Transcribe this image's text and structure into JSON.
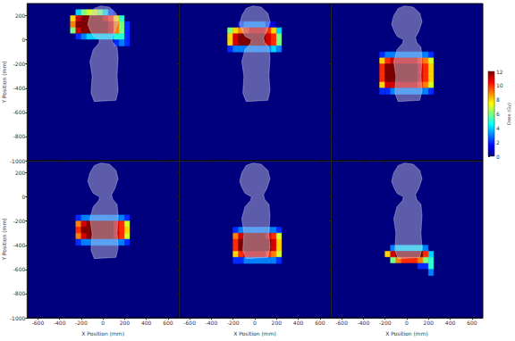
{
  "chart_data": [
    {
      "type": "heatmap",
      "tick_labels": "y",
      "ylabel": "Y Position (mm)",
      "xlim": [
        -700,
        700
      ],
      "ylim": [
        -1000,
        300
      ],
      "xticks": [
        -600,
        -400,
        -200,
        0,
        200,
        400,
        600
      ],
      "yticks": [
        200,
        0,
        -200,
        -400,
        -600,
        -800,
        -1000
      ],
      "color_range": [
        0,
        12
      ],
      "cell_size": 50,
      "cell_x": [
        -325,
        -275,
        -225,
        -175,
        -125,
        -75,
        -25,
        25,
        75,
        125,
        175,
        225,
        275
      ],
      "cell_y": [
        225,
        175,
        125,
        75,
        25,
        -25
      ],
      "cells": [
        [
          0,
          0,
          4,
          6,
          7,
          7,
          6,
          4,
          2,
          0,
          0,
          0,
          0
        ],
        [
          0,
          8,
          11,
          12,
          12,
          12,
          12,
          11,
          10,
          8,
          5,
          0,
          0
        ],
        [
          0,
          9,
          12,
          12,
          12,
          12,
          12,
          12,
          11,
          9,
          6,
          2,
          0
        ],
        [
          0,
          6,
          11,
          12,
          12,
          12,
          12,
          12,
          11,
          9,
          6,
          2,
          0
        ],
        [
          0,
          0,
          2,
          3,
          4,
          4,
          4,
          4,
          4,
          5,
          5,
          2,
          0
        ],
        [
          0,
          0,
          0,
          0,
          0,
          0,
          0,
          0,
          0,
          2,
          3,
          2,
          0
        ]
      ]
    },
    {
      "type": "heatmap",
      "tick_labels": false,
      "xlim": [
        -700,
        700
      ],
      "ylim": [
        -1000,
        300
      ],
      "xticks": [
        -600,
        -400,
        -200,
        0,
        200,
        400,
        600
      ],
      "yticks": [
        200,
        0,
        -200,
        -400,
        -600,
        -800,
        -1000
      ],
      "color_range": [
        0,
        12
      ],
      "cell_size": 50,
      "cell_x": [
        -325,
        -275,
        -225,
        -175,
        -125,
        -75,
        -25,
        25,
        75,
        125,
        175,
        225,
        275
      ],
      "cell_y": [
        125,
        75,
        25,
        -25,
        -75
      ],
      "cells": [
        [
          0,
          0,
          0,
          0,
          2,
          3,
          3,
          3,
          3,
          2,
          1,
          0,
          0
        ],
        [
          0,
          0,
          6,
          8,
          9,
          10,
          11,
          11,
          11,
          10,
          8,
          4,
          0
        ],
        [
          0,
          0,
          8,
          11,
          12,
          12,
          12,
          12,
          12,
          11,
          10,
          6,
          0
        ],
        [
          0,
          0,
          8,
          11,
          12,
          12,
          12,
          12,
          12,
          11,
          10,
          6,
          0
        ],
        [
          0,
          0,
          2,
          3,
          3,
          3,
          3,
          3,
          3,
          3,
          4,
          3,
          0
        ]
      ]
    },
    {
      "type": "heatmap",
      "tick_labels": false,
      "xlim": [
        -700,
        700
      ],
      "ylim": [
        -1000,
        300
      ],
      "xticks": [
        -600,
        -400,
        -200,
        0,
        200,
        400,
        600
      ],
      "yticks": [
        200,
        0,
        -200,
        -400,
        -600,
        -800,
        -1000
      ],
      "color_range": [
        0,
        12
      ],
      "color_ticks": [
        0,
        2,
        4,
        6,
        8,
        10,
        12
      ],
      "colorbar_label": "Dose (Gy)",
      "cell_size": 50,
      "cell_x": [
        -325,
        -275,
        -225,
        -175,
        -125,
        -75,
        -25,
        25,
        75,
        125,
        175,
        225,
        275
      ],
      "cell_y": [
        -125,
        -175,
        -225,
        -275,
        -325,
        -375,
        -425
      ],
      "cells": [
        [
          0,
          0,
          2,
          3,
          3,
          3,
          3,
          3,
          3,
          3,
          3,
          2,
          0
        ],
        [
          0,
          0,
          8,
          10,
          11,
          11,
          11,
          11,
          11,
          10,
          9,
          7,
          0
        ],
        [
          0,
          0,
          10,
          12,
          12,
          12,
          12,
          12,
          12,
          11,
          10,
          8,
          0
        ],
        [
          0,
          0,
          10,
          12,
          12,
          12,
          12,
          12,
          12,
          11,
          10,
          8,
          0
        ],
        [
          0,
          0,
          10,
          12,
          12,
          12,
          12,
          12,
          12,
          11,
          10,
          8,
          0
        ],
        [
          0,
          0,
          8,
          11,
          11,
          11,
          11,
          11,
          11,
          10,
          9,
          7,
          0
        ],
        [
          0,
          0,
          2,
          2,
          3,
          3,
          3,
          3,
          3,
          3,
          3,
          2,
          0
        ]
      ]
    },
    {
      "type": "heatmap",
      "tick_labels": true,
      "xlabel": "X Position (mm)",
      "ylabel": "Y Position (mm)",
      "xlim": [
        -700,
        700
      ],
      "ylim": [
        -1000,
        300
      ],
      "xticks": [
        -600,
        -400,
        -200,
        0,
        200,
        400,
        600
      ],
      "yticks": [
        200,
        0,
        -200,
        -400,
        -600,
        -800,
        -1000
      ],
      "color_range": [
        0,
        12
      ],
      "cell_size": 50,
      "cell_x": [
        -325,
        -275,
        -225,
        -175,
        -125,
        -75,
        -25,
        25,
        75,
        125,
        175,
        225,
        275
      ],
      "cell_y": [
        -175,
        -225,
        -275,
        -325,
        -375
      ],
      "cells": [
        [
          0,
          0,
          2,
          3,
          3,
          3,
          3,
          3,
          3,
          3,
          3,
          2,
          0
        ],
        [
          0,
          0,
          9,
          11,
          12,
          12,
          12,
          12,
          12,
          11,
          10,
          7,
          0
        ],
        [
          0,
          0,
          10,
          12,
          12,
          12,
          12,
          12,
          12,
          11,
          10,
          8,
          0
        ],
        [
          0,
          0,
          9,
          11,
          12,
          12,
          12,
          12,
          12,
          11,
          10,
          7,
          0
        ],
        [
          0,
          0,
          2,
          3,
          3,
          3,
          3,
          3,
          3,
          3,
          3,
          2,
          0
        ]
      ]
    },
    {
      "type": "heatmap",
      "tick_labels": "x",
      "xlabel": "X Position (mm)",
      "xlim": [
        -700,
        700
      ],
      "ylim": [
        -1000,
        300
      ],
      "xticks": [
        -600,
        -400,
        -200,
        0,
        200,
        400,
        600
      ],
      "yticks": [
        200,
        0,
        -200,
        -400,
        -600,
        -800,
        -1000
      ],
      "color_range": [
        0,
        12
      ],
      "cell_size": 50,
      "cell_x": [
        -325,
        -275,
        -225,
        -175,
        -125,
        -75,
        -25,
        25,
        75,
        125,
        175,
        225,
        275
      ],
      "cell_y": [
        -275,
        -325,
        -375,
        -425,
        -475,
        -525
      ],
      "cells": [
        [
          0,
          0,
          0,
          2,
          3,
          3,
          3,
          3,
          3,
          3,
          3,
          2,
          0
        ],
        [
          0,
          0,
          0,
          9,
          11,
          12,
          12,
          12,
          12,
          11,
          10,
          7,
          0
        ],
        [
          0,
          0,
          0,
          10,
          12,
          12,
          12,
          12,
          12,
          12,
          11,
          8,
          0
        ],
        [
          0,
          0,
          0,
          10,
          12,
          12,
          12,
          12,
          12,
          12,
          11,
          8,
          0
        ],
        [
          0,
          0,
          0,
          8,
          10,
          11,
          11,
          11,
          11,
          10,
          9,
          7,
          0
        ],
        [
          0,
          0,
          0,
          2,
          2,
          3,
          3,
          3,
          3,
          3,
          3,
          2,
          0
        ]
      ]
    },
    {
      "type": "heatmap",
      "tick_labels": "x",
      "xlabel": "X Position (mm)",
      "xlim": [
        -700,
        700
      ],
      "ylim": [
        -1000,
        300
      ],
      "xticks": [
        -600,
        -400,
        -200,
        0,
        200,
        400,
        600
      ],
      "yticks": [
        200,
        0,
        -200,
        -400,
        -600,
        -800,
        -1000
      ],
      "color_range": [
        0,
        12
      ],
      "cell_size": 50,
      "cell_x": [
        -325,
        -275,
        -225,
        -175,
        -125,
        -75,
        -25,
        25,
        75,
        125,
        175,
        225,
        275
      ],
      "cell_y": [
        -425,
        -475,
        -525,
        -575,
        -625
      ],
      "cells": [
        [
          0,
          0,
          0,
          0,
          3,
          4,
          4,
          4,
          4,
          4,
          3,
          0,
          0
        ],
        [
          0,
          0,
          0,
          8,
          11,
          12,
          12,
          12,
          12,
          12,
          10,
          4,
          0
        ],
        [
          0,
          0,
          0,
          0,
          6,
          9,
          10,
          10,
          10,
          9,
          6,
          5,
          0
        ],
        [
          0,
          0,
          0,
          0,
          0,
          0,
          0,
          0,
          0,
          2,
          2,
          5,
          0
        ],
        [
          0,
          0,
          0,
          0,
          0,
          0,
          0,
          0,
          0,
          0,
          0,
          3,
          0
        ]
      ]
    }
  ]
}
